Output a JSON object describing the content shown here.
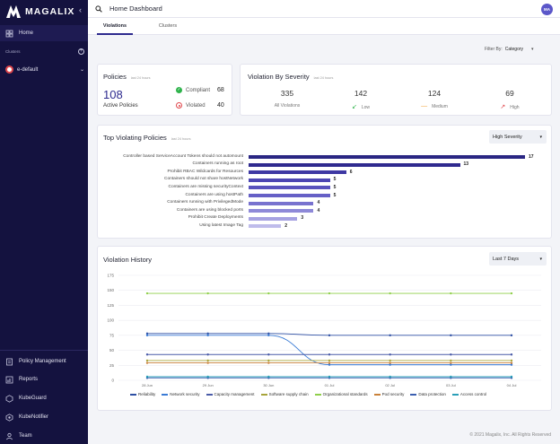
{
  "brand": {
    "name": "MAGALIX"
  },
  "header": {
    "title": "Home Dashboard",
    "avatar_initials": "MA"
  },
  "sidebar": {
    "home_label": "Home",
    "clusters_label": "Clusters",
    "cluster_name": "e-default",
    "bottom_items": [
      {
        "label": "Policy Management",
        "icon": "policy-icon"
      },
      {
        "label": "Reports",
        "icon": "reports-icon"
      },
      {
        "label": "KubeGuard",
        "icon": "kubeguard-icon"
      },
      {
        "label": "KubeNotifier",
        "icon": "kubenotifier-icon"
      },
      {
        "label": "Team",
        "icon": "team-icon"
      }
    ]
  },
  "tabs": [
    {
      "label": "Violations"
    },
    {
      "label": "Clusters"
    }
  ],
  "filter": {
    "label": "Filter By:",
    "value": "Category"
  },
  "policies": {
    "title": "Policies",
    "subtitle": "last 24 hours",
    "active_count": "108",
    "active_label": "Active Policies",
    "compliant_label": "Compliant",
    "compliant_value": "68",
    "violated_label": "Violated",
    "violated_value": "40"
  },
  "severity": {
    "title": "Violation By Severity",
    "subtitle": "last 24 hours",
    "items": [
      {
        "value": "335",
        "label": "All Violations"
      },
      {
        "value": "142",
        "label": "Low"
      },
      {
        "value": "124",
        "label": "Medium"
      },
      {
        "value": "69",
        "label": "High"
      }
    ]
  },
  "top_violating": {
    "title": "Top Violating Policies",
    "subtitle": "last 24 hours",
    "select_value": "High Severity"
  },
  "violation_history": {
    "title": "Violation History",
    "select_value": "Last 7 Days"
  },
  "footer": {
    "text": "© 2021 Magalix, Inc. All Rights Reserved"
  },
  "colors": {
    "sidebar": "#14123f",
    "accent": "#2d2a8e",
    "compliant": "#2eb34b",
    "violated": "#e0474c",
    "low": "#2eb34b",
    "medium": "#f2a33a",
    "high": "#e0474c"
  },
  "chart_data": [
    {
      "type": "bar",
      "orientation": "horizontal",
      "categories": [
        "Controller based ServiceAccount Tokens should not automount",
        "Containers running as root",
        "Prohibit RBAC Wildcards for Resources",
        "Containers should not share hostNetwork",
        "Containers are missing securityContext",
        "Containers are using hostPath",
        "Containers running with PrivilegedMode",
        "Containers are using blocked ports",
        "Prohibit Create Deployments",
        "Using latest Image Tag"
      ],
      "values": [
        17,
        13,
        6,
        5,
        5,
        5,
        4,
        4,
        3,
        2
      ],
      "colors": [
        "#2a2683",
        "#2f2a8f",
        "#3e38a3",
        "#4c46b3",
        "#5953bd",
        "#6660c6",
        "#7872cf",
        "#8e89d8",
        "#a6a2e2",
        "#bfbceb"
      ]
    },
    {
      "type": "line",
      "x": [
        "28 Jun",
        "29 Jun",
        "30 Jun",
        "01 Jul",
        "02 Jul",
        "03 Jul",
        "04 Jul"
      ],
      "ylim": [
        0,
        175
      ],
      "yticks": [
        0,
        25,
        50,
        75,
        100,
        125,
        150,
        175
      ],
      "grid": true,
      "legend": "bottom",
      "series": [
        {
          "name": "Reliability",
          "color": "#2d4fa3",
          "values": [
            78,
            78,
            78,
            75,
            75,
            75,
            75
          ]
        },
        {
          "name": "Network security",
          "color": "#3a7bd5",
          "values": [
            75,
            75,
            75,
            26,
            26,
            26,
            26
          ]
        },
        {
          "name": "Capacity management",
          "color": "#4a5ba8",
          "values": [
            43,
            43,
            43,
            43,
            43,
            43,
            43
          ]
        },
        {
          "name": "Software supply chain",
          "color": "#a7a43a",
          "values": [
            33,
            33,
            33,
            33,
            33,
            33,
            33
          ]
        },
        {
          "name": "Organizational standards",
          "color": "#8fcf4a",
          "values": [
            145,
            145,
            145,
            145,
            145,
            145,
            145
          ]
        },
        {
          "name": "Pod security",
          "color": "#c9813a",
          "values": [
            29,
            29,
            29,
            29,
            29,
            29,
            29
          ]
        },
        {
          "name": "Data protection",
          "color": "#3b5fb0",
          "values": [
            4,
            4,
            4,
            4,
            4,
            4,
            4
          ]
        },
        {
          "name": "Access control",
          "color": "#2a9fb8",
          "values": [
            6,
            6,
            6,
            6,
            6,
            6,
            6
          ]
        }
      ]
    }
  ]
}
